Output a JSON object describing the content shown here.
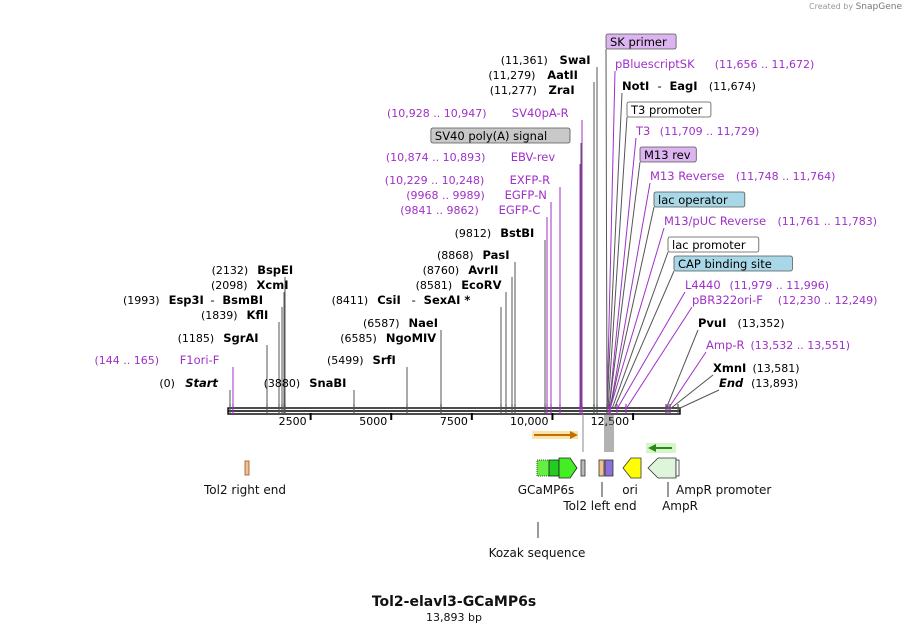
{
  "credit": {
    "prefix": "Created by",
    "brand": "SnapGene"
  },
  "plasmid": {
    "name": "Tol2-elavl3-GCaMP6s",
    "length_label": "13,893 bp",
    "length": 13893
  },
  "axis_ticks": [
    "2500",
    "5000",
    "7500",
    "10,000",
    "12,500"
  ],
  "colors": {
    "primer": "#a030c8",
    "enzyme": "#000000",
    "line": "#555555"
  },
  "sites": [
    {
      "id": "start",
      "pos": "(0)",
      "name": "Start",
      "kind": "enzyme",
      "italic": true
    },
    {
      "id": "f1ori",
      "pos": "(144 .. 165)",
      "name": "F1ori-F",
      "kind": "primer"
    },
    {
      "id": "sgrai",
      "pos": "(1185)",
      "name": "SgrAI",
      "kind": "enzyme"
    },
    {
      "id": "kfli",
      "pos": "(1839)",
      "name": "KflI",
      "kind": "enzyme"
    },
    {
      "id": "esp3i",
      "pos": "(1993)",
      "name": "Esp3I",
      "name2": "BsmBI",
      "kind": "enzyme"
    },
    {
      "id": "xcmi",
      "pos": "(2098)",
      "name": "XcmI",
      "kind": "enzyme"
    },
    {
      "id": "bspei",
      "pos": "(2132)",
      "name": "BspEI",
      "kind": "enzyme"
    },
    {
      "id": "snabi",
      "pos": "(3880)",
      "name": "SnaBI",
      "kind": "enzyme"
    },
    {
      "id": "srfi",
      "pos": "(5499)",
      "name": "SrfI",
      "kind": "enzyme"
    },
    {
      "id": "ngomiv",
      "pos": "(6585)",
      "name": "NgoMIV",
      "kind": "enzyme"
    },
    {
      "id": "naei",
      "pos": "(6587)",
      "name": "NaeI",
      "kind": "enzyme"
    },
    {
      "id": "csii",
      "pos": "(8411)",
      "name": "CsiI",
      "name2": "SexAI *",
      "kind": "enzyme"
    },
    {
      "id": "ecorv",
      "pos": "(8581)",
      "name": "EcoRV",
      "kind": "enzyme"
    },
    {
      "id": "avrii",
      "pos": "(8760)",
      "name": "AvrII",
      "kind": "enzyme"
    },
    {
      "id": "pasi",
      "pos": "(8868)",
      "name": "PasI",
      "kind": "enzyme"
    },
    {
      "id": "bstbi",
      "pos": "(9812)",
      "name": "BstBI",
      "kind": "enzyme"
    },
    {
      "id": "egfpc",
      "pos": "(9841 .. 9862)",
      "name": "EGFP-C",
      "kind": "primer"
    },
    {
      "id": "egfpn",
      "pos": "(9968 .. 9989)",
      "name": "EGFP-N",
      "kind": "primer"
    },
    {
      "id": "exfpr",
      "pos": "(10,229 .. 10,248)",
      "name": "EXFP-R",
      "kind": "primer"
    },
    {
      "id": "ebvrev",
      "pos": "(10,874 .. 10,893)",
      "name": "EBV-rev",
      "kind": "primer"
    },
    {
      "id": "sv40pa",
      "name": "SV40 poly(A) signal",
      "kind": "feature",
      "fill": "#c8c8c8"
    },
    {
      "id": "sv40par",
      "pos": "(10,928 .. 10,947)",
      "name": "SV40pA-R",
      "kind": "primer"
    },
    {
      "id": "zrai",
      "pos": "(11,277)",
      "name": "ZraI",
      "kind": "enzyme"
    },
    {
      "id": "aatii",
      "pos": "(11,279)",
      "name": "AatII",
      "kind": "enzyme"
    },
    {
      "id": "swai",
      "pos": "(11,361)",
      "name": "SwaI",
      "kind": "enzyme"
    },
    {
      "id": "skprimer",
      "name": "SK primer",
      "kind": "feature",
      "fill": "#dcb4f0"
    },
    {
      "id": "pbluescript",
      "pos": "(11,656 .. 11,672)",
      "name": "pBluescriptSK",
      "kind": "primer",
      "pos_right": true
    },
    {
      "id": "noti",
      "pos": "(11,674)",
      "name": "NotI",
      "name2": "EagI",
      "kind": "enzyme",
      "pos_right": true
    },
    {
      "id": "t3prom",
      "name": "T3 promoter",
      "kind": "feature",
      "fill": "#ffffff"
    },
    {
      "id": "t3",
      "pos": "(11,709 .. 11,729)",
      "name": "T3",
      "kind": "primer",
      "pos_right": true
    },
    {
      "id": "m13rev",
      "name": "M13 rev",
      "kind": "feature",
      "fill": "#dcb4f0"
    },
    {
      "id": "m13reverse",
      "pos": "(11,748 .. 11,764)",
      "name": "M13 Reverse",
      "kind": "primer",
      "pos_right": true
    },
    {
      "id": "lacop",
      "name": "lac operator",
      "kind": "feature",
      "fill": "#a8d8e8"
    },
    {
      "id": "m13puc",
      "pos": "(11,761 .. 11,783)",
      "name": "M13/pUC Reverse",
      "kind": "primer",
      "pos_right": true
    },
    {
      "id": "lacprom",
      "name": "lac promoter",
      "kind": "feature",
      "fill": "#ffffff"
    },
    {
      "id": "cap",
      "name": "CAP binding site",
      "kind": "feature",
      "fill": "#a8d8e8"
    },
    {
      "id": "l4440",
      "pos": "(11,979 .. 11,996)",
      "name": "L4440",
      "kind": "primer",
      "pos_right": true
    },
    {
      "id": "pbr322",
      "pos": "(12,230 .. 12,249)",
      "name": "pBR322ori-F",
      "kind": "primer",
      "pos_right": true
    },
    {
      "id": "pvui",
      "pos": "(13,352)",
      "name": "PvuI",
      "kind": "enzyme",
      "pos_right": true
    },
    {
      "id": "ampr_p",
      "pos": "(13,532 .. 13,551)",
      "name": "Amp-R",
      "kind": "primer",
      "pos_right": true
    },
    {
      "id": "xmni",
      "pos": "(13,581)",
      "name": "XmnI",
      "kind": "enzyme",
      "pos_right": true
    },
    {
      "id": "end",
      "pos": "(13,893)",
      "name": "End",
      "kind": "enzyme",
      "italic": true,
      "pos_right": true
    }
  ],
  "features": [
    {
      "id": "tol2right",
      "name": "Tol2 right end"
    },
    {
      "id": "gcamp6s",
      "name": "GCaMP6s"
    },
    {
      "id": "kozak",
      "name": "Kozak sequence"
    },
    {
      "id": "tol2left",
      "name": "Tol2 left end"
    },
    {
      "id": "ori",
      "name": "ori"
    },
    {
      "id": "amprprom",
      "name": "AmpR promoter"
    },
    {
      "id": "ampr",
      "name": "AmpR"
    }
  ]
}
